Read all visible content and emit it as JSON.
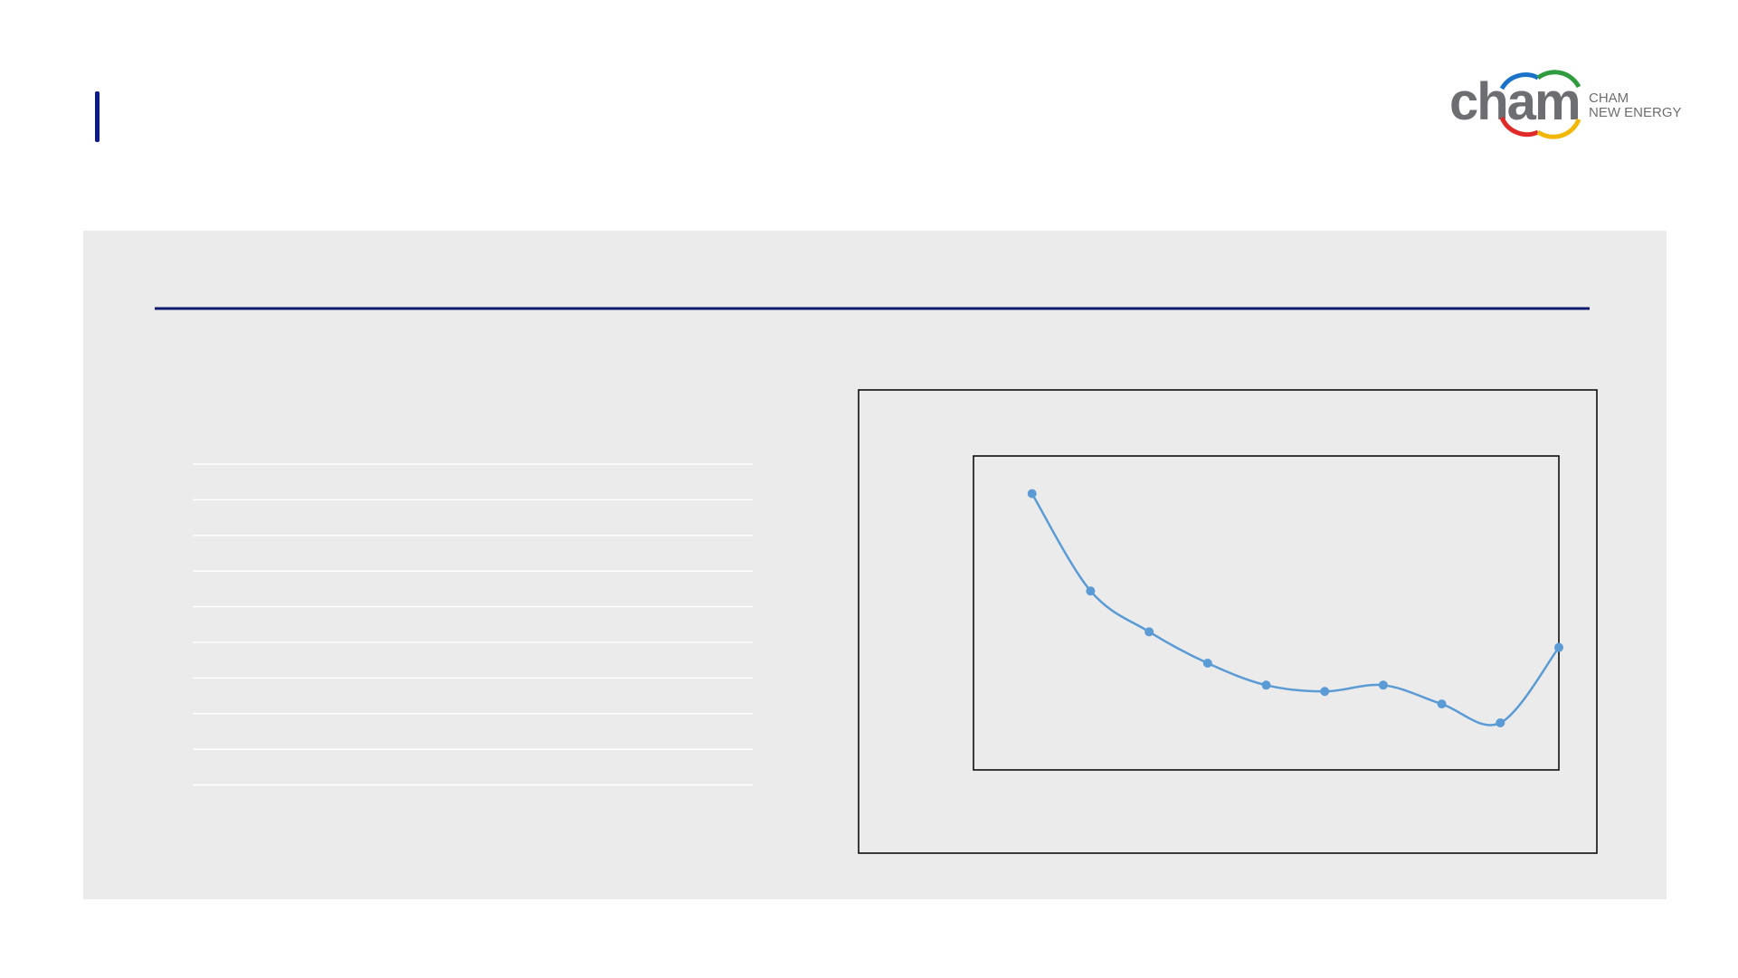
{
  "logo": {
    "mark": "cham",
    "line1": "CHAM",
    "line2": "NEW ENERGY"
  },
  "chart_data": {
    "type": "line",
    "categories": [
      null,
      null,
      null,
      null,
      null,
      null,
      null,
      null,
      null,
      null
    ],
    "series": [
      {
        "color": "#5b9bd5",
        "values": [
          88,
          57,
          44,
          34,
          27,
          25,
          27,
          21,
          15,
          39
        ]
      }
    ],
    "ylim": [
      0,
      100
    ],
    "smooth": true
  }
}
